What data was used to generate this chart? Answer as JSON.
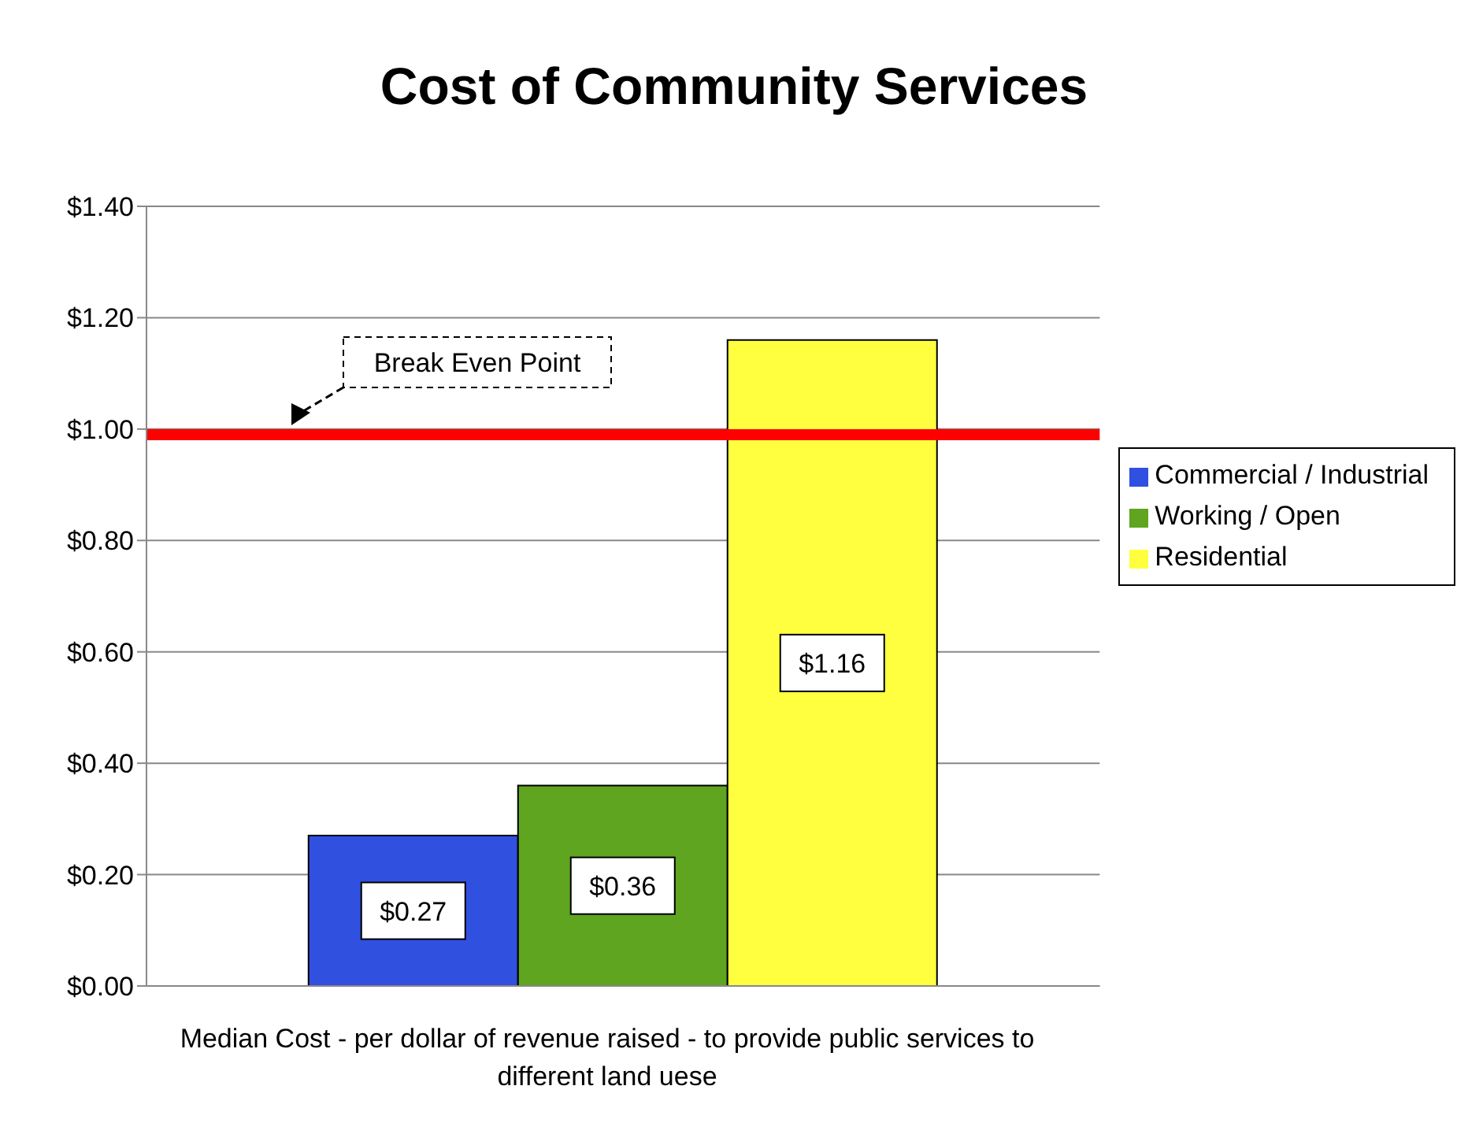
{
  "chart_data": {
    "type": "bar",
    "title": "Cost of Community Services",
    "xlabel": "Median Cost - per dollar of revenue raised - to provide public services to different land uese",
    "categories": [
      null
    ],
    "series": [
      {
        "name": "Commercial / Industrial",
        "color": "#3050e0",
        "values": [
          0.27
        ],
        "value_labels": [
          "$0.27"
        ]
      },
      {
        "name": "Working / Open",
        "color": "#5fa520",
        "values": [
          0.36
        ],
        "value_labels": [
          "$0.36"
        ]
      },
      {
        "name": "Residential",
        "color": "#ffff40",
        "values": [
          1.16
        ],
        "value_labels": [
          "$1.16"
        ]
      }
    ],
    "ylim": [
      0,
      1.4
    ],
    "yticks": [
      {
        "value": 0,
        "label": "$0.00"
      },
      {
        "value": 0.2,
        "label": "$0.20"
      },
      {
        "value": 0.4,
        "label": "$0.40"
      },
      {
        "value": 0.6,
        "label": "$0.60"
      },
      {
        "value": 0.8,
        "label": "$0.80"
      },
      {
        "value": 1,
        "label": "$1.00"
      },
      {
        "value": 1.2,
        "label": "$1.20"
      },
      {
        "value": 1.4,
        "label": "$1.40"
      }
    ],
    "grid": "y",
    "legend": "right",
    "ref_lines": [
      {
        "axis": "y",
        "value": 0.99,
        "label": "Break Even Point",
        "color": "#ff0000"
      }
    ]
  }
}
